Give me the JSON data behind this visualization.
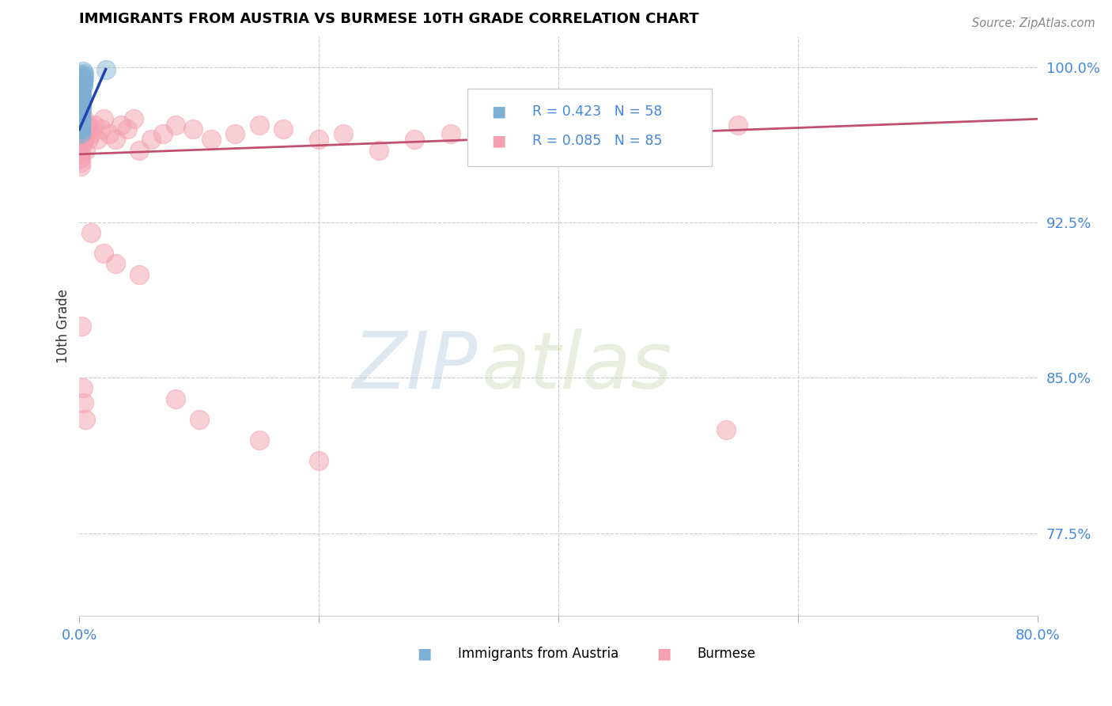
{
  "title": "IMMIGRANTS FROM AUSTRIA VS BURMESE 10TH GRADE CORRELATION CHART",
  "source": "Source: ZipAtlas.com",
  "ylabel": "10th Grade",
  "xlim": [
    0.0,
    0.8
  ],
  "ylim": [
    0.735,
    1.015
  ],
  "yticks": [
    0.775,
    0.85,
    0.925,
    1.0
  ],
  "ytick_labels": [
    "77.5%",
    "85.0%",
    "92.5%",
    "100.0%"
  ],
  "color_austria": "#7EB0D5",
  "color_burmese": "#F4A0B0",
  "line_color_austria": "#2244AA",
  "line_color_burmese": "#C05070",
  "watermark_zip": "ZIP",
  "watermark_atlas": "atlas",
  "austria_x": [
    0.003,
    0.004,
    0.002,
    0.003,
    0.004,
    0.003,
    0.002,
    0.003,
    0.002,
    0.003,
    0.002,
    0.003,
    0.002,
    0.001,
    0.002,
    0.001,
    0.002,
    0.001,
    0.002,
    0.001,
    0.002,
    0.001,
    0.002,
    0.001,
    0.002,
    0.001,
    0.002,
    0.001,
    0.002,
    0.001,
    0.002,
    0.001,
    0.002,
    0.001,
    0.002,
    0.001,
    0.001,
    0.001,
    0.001,
    0.001,
    0.001,
    0.001,
    0.001,
    0.001,
    0.001,
    0.001,
    0.001,
    0.001,
    0.001,
    0.001,
    0.001,
    0.001,
    0.001,
    0.001,
    0.001,
    0.001,
    0.022,
    0.001
  ],
  "austria_y": [
    0.998,
    0.997,
    0.996,
    0.996,
    0.995,
    0.994,
    0.994,
    0.993,
    0.993,
    0.992,
    0.992,
    0.991,
    0.991,
    0.99,
    0.99,
    0.989,
    0.989,
    0.988,
    0.988,
    0.987,
    0.987,
    0.986,
    0.986,
    0.985,
    0.985,
    0.984,
    0.984,
    0.983,
    0.983,
    0.982,
    0.982,
    0.981,
    0.981,
    0.98,
    0.98,
    0.979,
    0.979,
    0.978,
    0.978,
    0.977,
    0.977,
    0.976,
    0.976,
    0.975,
    0.975,
    0.974,
    0.974,
    0.973,
    0.973,
    0.972,
    0.972,
    0.971,
    0.971,
    0.97,
    0.97,
    0.969,
    0.999,
    0.968
  ],
  "burmese_x": [
    0.001,
    0.001,
    0.001,
    0.001,
    0.001,
    0.001,
    0.001,
    0.001,
    0.001,
    0.001,
    0.001,
    0.001,
    0.001,
    0.001,
    0.001,
    0.001,
    0.001,
    0.001,
    0.001,
    0.001,
    0.002,
    0.002,
    0.002,
    0.002,
    0.002,
    0.002,
    0.002,
    0.002,
    0.003,
    0.003,
    0.003,
    0.003,
    0.004,
    0.004,
    0.005,
    0.005,
    0.006,
    0.007,
    0.008,
    0.009,
    0.01,
    0.012,
    0.015,
    0.018,
    0.02,
    0.025,
    0.03,
    0.035,
    0.04,
    0.045,
    0.05,
    0.06,
    0.07,
    0.08,
    0.095,
    0.11,
    0.13,
    0.15,
    0.17,
    0.2,
    0.22,
    0.25,
    0.28,
    0.31,
    0.34,
    0.37,
    0.4,
    0.43,
    0.46,
    0.49,
    0.52,
    0.55,
    0.01,
    0.02,
    0.03,
    0.05,
    0.08,
    0.1,
    0.15,
    0.2,
    0.002,
    0.003,
    0.004,
    0.005,
    0.54
  ],
  "burmese_y": [
    0.99,
    0.988,
    0.986,
    0.984,
    0.982,
    0.98,
    0.978,
    0.976,
    0.974,
    0.972,
    0.97,
    0.968,
    0.966,
    0.964,
    0.962,
    0.96,
    0.958,
    0.956,
    0.954,
    0.952,
    0.995,
    0.993,
    0.991,
    0.988,
    0.985,
    0.982,
    0.979,
    0.976,
    0.973,
    0.97,
    0.967,
    0.964,
    0.975,
    0.965,
    0.97,
    0.96,
    0.968,
    0.972,
    0.965,
    0.97,
    0.968,
    0.972,
    0.965,
    0.97,
    0.975,
    0.968,
    0.965,
    0.972,
    0.97,
    0.975,
    0.96,
    0.965,
    0.968,
    0.972,
    0.97,
    0.965,
    0.968,
    0.972,
    0.97,
    0.965,
    0.968,
    0.96,
    0.965,
    0.968,
    0.972,
    0.97,
    0.965,
    0.968,
    0.96,
    0.965,
    0.968,
    0.972,
    0.92,
    0.91,
    0.905,
    0.9,
    0.84,
    0.83,
    0.82,
    0.81,
    0.875,
    0.845,
    0.838,
    0.83,
    0.825
  ],
  "austria_trend_x": [
    0.0,
    0.022
  ],
  "austria_trend_y": [
    0.97,
    0.999
  ],
  "burmese_trend_x": [
    0.0,
    0.8
  ],
  "burmese_trend_y": [
    0.958,
    0.975
  ]
}
